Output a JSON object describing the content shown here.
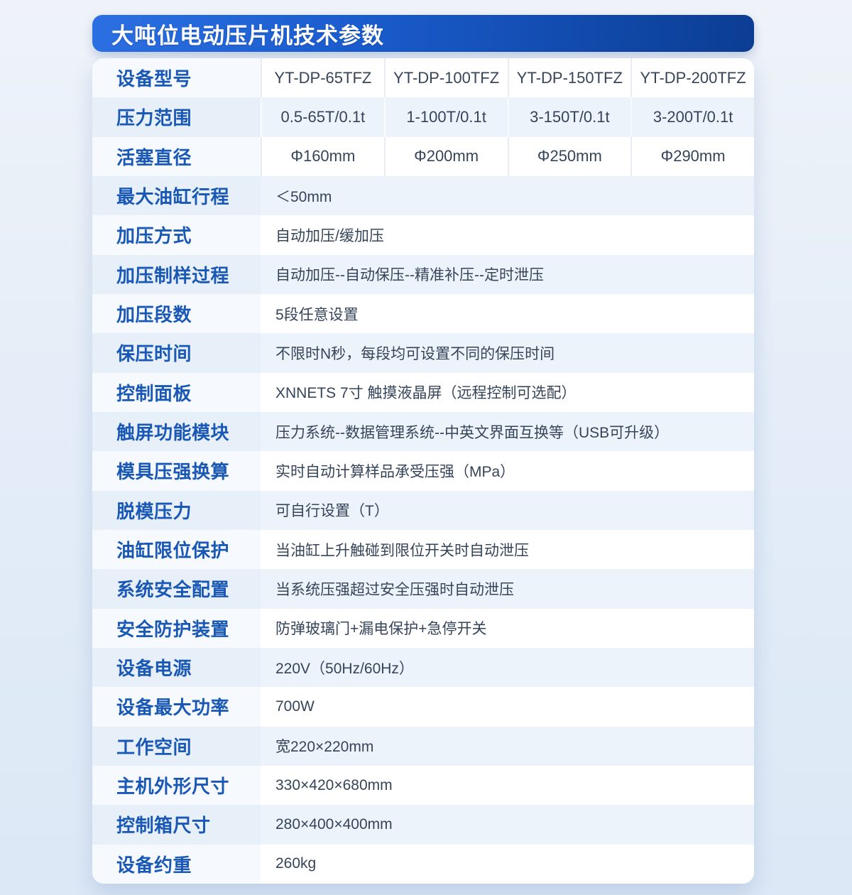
{
  "header": {
    "title": "大吨位电动压片机技术参数"
  },
  "table": {
    "rows": [
      {
        "label": "设备型号",
        "values": [
          "YT-DP-65TFZ",
          "YT-DP-100TFZ",
          "YT-DP-150TFZ",
          "YT-DP-200TFZ"
        ]
      },
      {
        "label": "压力范围",
        "values": [
          "0.5-65T/0.1t",
          "1-100T/0.1t",
          "3-150T/0.1t",
          "3-200T/0.1t"
        ]
      },
      {
        "label": "活塞直径",
        "values": [
          "Φ160mm",
          "Φ200mm",
          "Φ250mm",
          "Φ290mm"
        ]
      },
      {
        "label": "最大油缸行程",
        "values": [
          "＜50mm"
        ]
      },
      {
        "label": "加压方式",
        "values": [
          "自动加压/缓加压"
        ]
      },
      {
        "label": "加压制样过程",
        "values": [
          "自动加压--自动保压--精准补压--定时泄压"
        ]
      },
      {
        "label": "加压段数",
        "values": [
          "5段任意设置"
        ]
      },
      {
        "label": "保压时间",
        "values": [
          "不限时N秒，每段均可设置不同的保压时间"
        ]
      },
      {
        "label": "控制面板",
        "values": [
          "XNNETS 7寸 触摸液晶屏（远程控制可选配）"
        ]
      },
      {
        "label": "触屏功能模块",
        "values": [
          "压力系统--数据管理系统--中英文界面互换等（USB可升级）"
        ]
      },
      {
        "label": "模具压强换算",
        "values": [
          "实时自动计算样品承受压强（MPa）"
        ]
      },
      {
        "label": "脱模压力",
        "values": [
          "可自行设置（T）"
        ]
      },
      {
        "label": "油缸限位保护",
        "values": [
          "当油缸上升触碰到限位开关时自动泄压"
        ]
      },
      {
        "label": "系统安全配置",
        "values": [
          "当系统压强超过安全压强时自动泄压"
        ]
      },
      {
        "label": "安全防护装置",
        "values": [
          "防弹玻璃门+漏电保护+急停开关"
        ]
      },
      {
        "label": "设备电源",
        "values": [
          "220V（50Hz/60Hz）"
        ]
      },
      {
        "label": "设备最大功率",
        "values": [
          "700W"
        ]
      },
      {
        "label": "工作空间",
        "values": [
          "宽220×220mm"
        ]
      },
      {
        "label": "主机外形尺寸",
        "values": [
          "330×420×680mm"
        ]
      },
      {
        "label": "控制箱尺寸",
        "values": [
          "280×400×400mm"
        ]
      },
      {
        "label": "设备约重",
        "values": [
          "260kg"
        ]
      }
    ]
  },
  "colors": {
    "banner_gradient_start": "#2b6fe2",
    "banner_gradient_end": "#0b3d93",
    "label_text": "#1958b4",
    "value_text": "#36445a",
    "row_tint": "#edf3fb",
    "label_column_tint": "#e7eff9",
    "card_background": "#ffffff",
    "page_background": "#e4edf8"
  }
}
